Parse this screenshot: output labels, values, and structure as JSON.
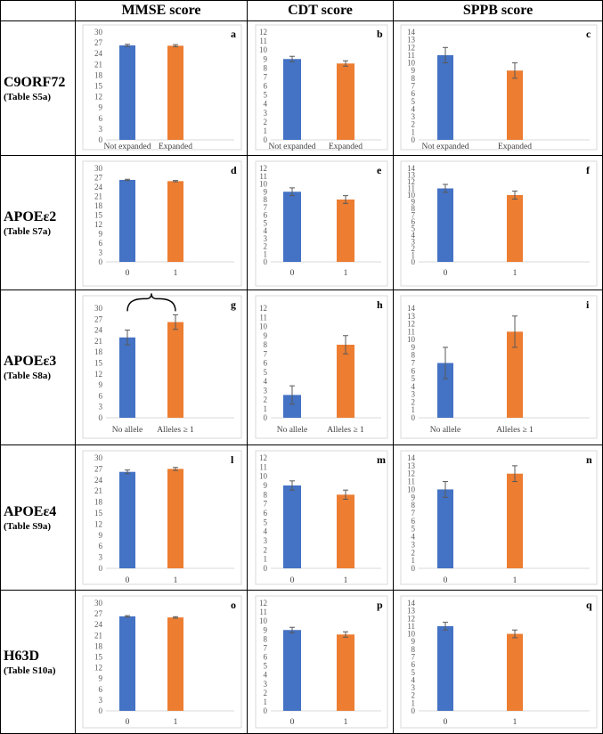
{
  "headers": {
    "corner": "",
    "columns": [
      "MMSE score",
      "CDT score",
      "SPPB score"
    ]
  },
  "rows": [
    {
      "gene": "C9ORF72",
      "table_ref": "(Table S5a)"
    },
    {
      "gene": "APOEε2",
      "table_ref": "(Table S7a)"
    },
    {
      "gene": "APOEε3",
      "table_ref": "(Table S8a)"
    },
    {
      "gene": "APOEε4",
      "table_ref": "(Table S9a)"
    },
    {
      "gene": "H63D",
      "table_ref": "(Table S10a)"
    }
  ],
  "colors": {
    "group1": "#4472C4",
    "group2": "#ED7D31",
    "error": "#595959",
    "axis": "#d9d9d9",
    "tick_text": "#595959"
  },
  "chart_data": [
    {
      "panel": "a",
      "type": "bar",
      "row": 0,
      "col": 0,
      "categories": [
        "Not expanded",
        "Expanded"
      ],
      "values": [
        26.3,
        26.2
      ],
      "errors": [
        0.3,
        0.3
      ],
      "ylim": [
        0,
        30
      ],
      "ticks": [
        0,
        3,
        6,
        9,
        12,
        15,
        18,
        21,
        24,
        27,
        30
      ]
    },
    {
      "panel": "b",
      "type": "bar",
      "row": 0,
      "col": 1,
      "categories": [
        "Not expanded",
        "Expanded"
      ],
      "values": [
        9.0,
        8.5
      ],
      "errors": [
        0.3,
        0.3
      ],
      "ylim": [
        0,
        12
      ],
      "ticks": [
        0,
        1,
        2,
        3,
        4,
        5,
        6,
        7,
        8,
        9,
        10,
        11,
        12
      ]
    },
    {
      "panel": "c",
      "type": "bar",
      "row": 0,
      "col": 2,
      "categories": [
        "Not expanded",
        "Expanded"
      ],
      "values": [
        11.0,
        9.0
      ],
      "errors": [
        1.0,
        1.0
      ],
      "ylim": [
        0,
        14
      ],
      "ticks": [
        0,
        1,
        2,
        3,
        4,
        5,
        6,
        7,
        8,
        9,
        10,
        11,
        12,
        13,
        14
      ]
    },
    {
      "panel": "d",
      "type": "bar",
      "row": 1,
      "col": 0,
      "categories": [
        "0",
        "1"
      ],
      "values": [
        26.3,
        25.9
      ],
      "errors": [
        0.2,
        0.2
      ],
      "ylim": [
        0,
        30
      ],
      "ticks": [
        0,
        3,
        6,
        9,
        12,
        15,
        18,
        21,
        24,
        27,
        30
      ]
    },
    {
      "panel": "e",
      "type": "bar",
      "row": 1,
      "col": 1,
      "categories": [
        "0",
        "1"
      ],
      "values": [
        9.0,
        8.0
      ],
      "errors": [
        0.5,
        0.5
      ],
      "ylim": [
        0,
        12
      ],
      "ticks": [
        0,
        1,
        2,
        3,
        4,
        5,
        6,
        7,
        8,
        9,
        10,
        11,
        12
      ]
    },
    {
      "panel": "f",
      "type": "bar",
      "row": 1,
      "col": 2,
      "categories": [
        "0",
        "1"
      ],
      "values": [
        11.0,
        10.0
      ],
      "errors": [
        0.6,
        0.6
      ],
      "ylim": [
        0,
        14
      ],
      "ticks": [
        0,
        1,
        2,
        3,
        4,
        5,
        6,
        7,
        8,
        9,
        10,
        11,
        12,
        13,
        14
      ]
    },
    {
      "panel": "g",
      "type": "bar",
      "row": 2,
      "col": 0,
      "categories": [
        "No allele",
        "Alleles ≥ 1"
      ],
      "values": [
        22.0,
        26.2
      ],
      "errors": [
        2.0,
        2.0
      ],
      "ylim": [
        0,
        30
      ],
      "ticks": [
        0,
        3,
        6,
        9,
        12,
        15,
        18,
        21,
        24,
        27,
        30
      ],
      "annotation": "*"
    },
    {
      "panel": "h",
      "type": "bar",
      "row": 2,
      "col": 1,
      "categories": [
        "No allele",
        "Alleles ≥ 1"
      ],
      "values": [
        2.5,
        8.0
      ],
      "errors": [
        1.0,
        1.0
      ],
      "ylim": [
        0,
        12
      ],
      "ticks": [
        0,
        1,
        2,
        3,
        4,
        5,
        6,
        7,
        8,
        9,
        10,
        11,
        12
      ]
    },
    {
      "panel": "i",
      "type": "bar",
      "row": 2,
      "col": 2,
      "categories": [
        "No allele",
        "Alleles ≥ 1"
      ],
      "values": [
        7.0,
        11.0
      ],
      "errors": [
        2.0,
        2.0
      ],
      "ylim": [
        0,
        14
      ],
      "ticks": [
        0,
        1,
        2,
        3,
        4,
        5,
        6,
        7,
        8,
        9,
        10,
        11,
        12,
        13,
        14
      ]
    },
    {
      "panel": "l",
      "type": "bar",
      "row": 3,
      "col": 0,
      "categories": [
        "0",
        "1"
      ],
      "values": [
        26.2,
        27.0
      ],
      "errors": [
        0.5,
        0.4
      ],
      "ylim": [
        0,
        30
      ],
      "ticks": [
        0,
        3,
        6,
        9,
        12,
        15,
        18,
        21,
        24,
        27,
        30
      ]
    },
    {
      "panel": "m",
      "type": "bar",
      "row": 3,
      "col": 1,
      "categories": [
        "0",
        "1"
      ],
      "values": [
        9.0,
        8.0
      ],
      "errors": [
        0.5,
        0.5
      ],
      "ylim": [
        0,
        12
      ],
      "ticks": [
        0,
        1,
        2,
        3,
        4,
        5,
        6,
        7,
        8,
        9,
        10,
        11,
        12
      ]
    },
    {
      "panel": "n",
      "type": "bar",
      "row": 3,
      "col": 2,
      "categories": [
        "0",
        "1"
      ],
      "values": [
        10.0,
        12.0
      ],
      "errors": [
        1.0,
        1.0
      ],
      "ylim": [
        0,
        14
      ],
      "ticks": [
        0,
        1,
        2,
        3,
        4,
        5,
        6,
        7,
        8,
        9,
        10,
        11,
        12,
        13,
        14
      ]
    },
    {
      "panel": "o",
      "type": "bar",
      "row": 4,
      "col": 0,
      "categories": [
        "0",
        "1"
      ],
      "values": [
        26.3,
        26.0
      ],
      "errors": [
        0.2,
        0.2
      ],
      "ylim": [
        0,
        30
      ],
      "ticks": [
        0,
        3,
        6,
        9,
        12,
        15,
        18,
        21,
        24,
        27,
        30
      ]
    },
    {
      "panel": "p",
      "type": "bar",
      "row": 4,
      "col": 1,
      "categories": [
        "0",
        "1"
      ],
      "values": [
        9.0,
        8.5
      ],
      "errors": [
        0.3,
        0.3
      ],
      "ylim": [
        0,
        12
      ],
      "ticks": [
        0,
        1,
        2,
        3,
        4,
        5,
        6,
        7,
        8,
        9,
        10,
        11,
        12
      ]
    },
    {
      "panel": "q",
      "type": "bar",
      "row": 4,
      "col": 2,
      "categories": [
        "0",
        "1"
      ],
      "values": [
        11.0,
        10.0
      ],
      "errors": [
        0.5,
        0.5
      ],
      "ylim": [
        0,
        14
      ],
      "ticks": [
        0,
        1,
        2,
        3,
        4,
        5,
        6,
        7,
        8,
        9,
        10,
        11,
        12,
        13,
        14
      ]
    }
  ]
}
